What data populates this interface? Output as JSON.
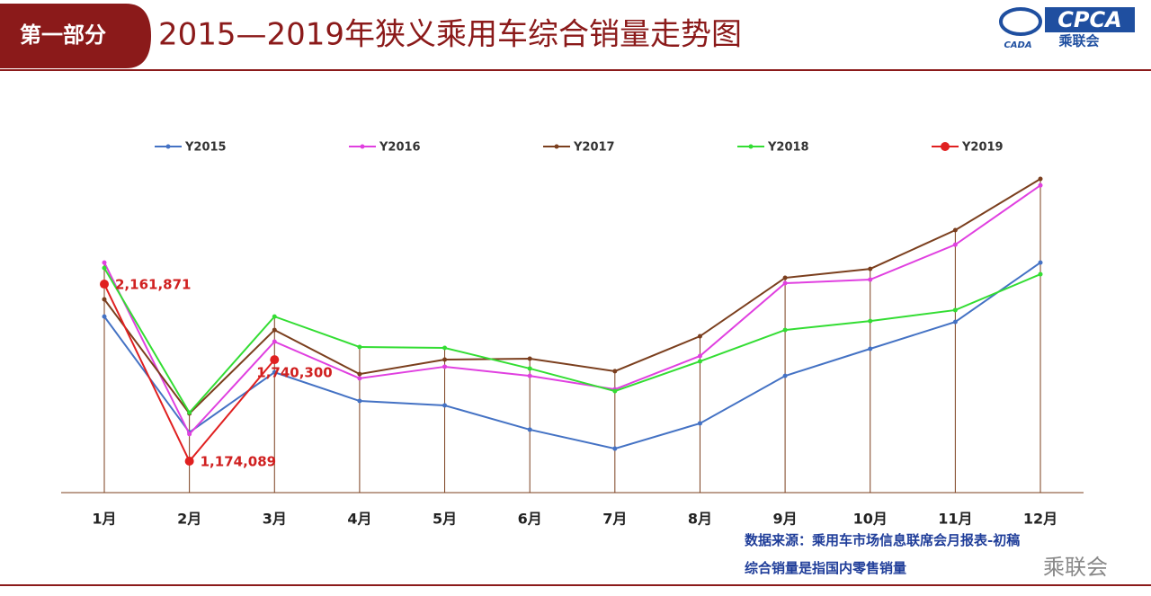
{
  "header": {
    "section": "第一部分",
    "logo_main": "CPCA",
    "logo_sub": "乘联会",
    "logo_left": "CADA"
  },
  "chart_data": {
    "type": "line",
    "title": "2015—2019年狭义乘用车综合销量走势图",
    "categories": [
      "1月",
      "2月",
      "3月",
      "4月",
      "5月",
      "6月",
      "7月",
      "8月",
      "9月",
      "10月",
      "11月",
      "12月"
    ],
    "series": [
      {
        "name": "Y2015",
        "color": "#4472c4",
        "values": [
          1981000,
          1335000,
          1670000,
          1510000,
          1485000,
          1350000,
          1244000,
          1385000,
          1650000,
          1801000,
          1951000,
          2282000
        ]
      },
      {
        "name": "Y2016",
        "color": "#e040e0",
        "values": [
          2282000,
          1325000,
          1841000,
          1636000,
          1701000,
          1650000,
          1575000,
          1761000,
          2167000,
          2187000,
          2382000,
          2713000
        ]
      },
      {
        "name": "Y2017",
        "color": "#7b3f1e",
        "values": [
          2077000,
          1440000,
          1906000,
          1660000,
          1741000,
          1746000,
          1676000,
          1871000,
          2197000,
          2247000,
          2463000,
          2749000
        ]
      },
      {
        "name": "Y2018",
        "color": "#33dd33",
        "values": [
          2252000,
          1445000,
          1981000,
          1811000,
          1806000,
          1691000,
          1565000,
          1731000,
          1906000,
          1956000,
          2017000,
          2217000
        ]
      },
      {
        "name": "Y2019",
        "color": "#e02020",
        "values": [
          2161871,
          1174089,
          1740300,
          null,
          null,
          null,
          null,
          null,
          null,
          null,
          null,
          null
        ],
        "value_labels": [
          "2,161,871",
          "1,174,089",
          "1,740,300",
          null,
          null,
          null,
          null,
          null,
          null,
          null,
          null,
          null
        ]
      }
    ],
    "notes": [
      "数据来源：乘用车市场信息联席会月报表-初稿",
      "综合销量是指国内零售销量"
    ],
    "watermark": "乘联会"
  }
}
